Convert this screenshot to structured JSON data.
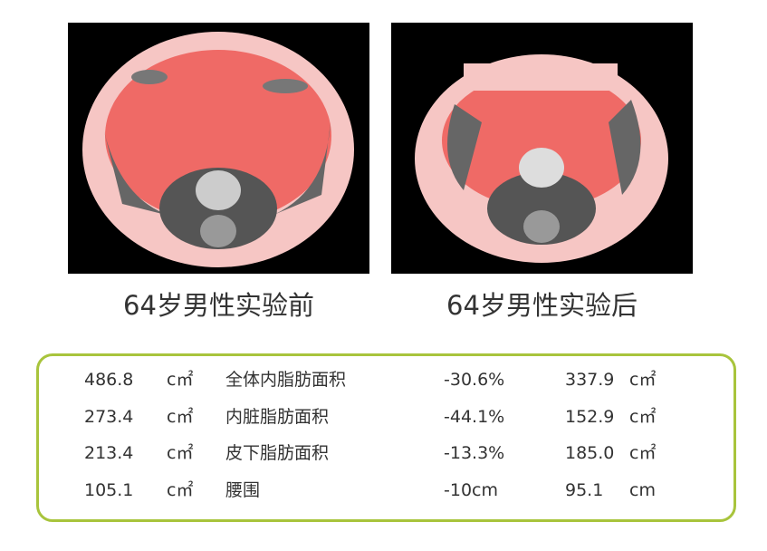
{
  "images": [
    {
      "caption": "64岁男性实验前"
    },
    {
      "caption": "64岁男性实验后"
    }
  ],
  "table": {
    "rows": [
      [
        "486.8",
        "c㎡",
        "全体内脂肪面积",
        "-30.6%",
        "337.9",
        "c㎡"
      ],
      [
        "273.4",
        "c㎡",
        "内脏脂肪面积",
        "-44.1%",
        "152.9",
        "c㎡"
      ],
      [
        "213.4",
        "c㎡",
        "皮下脂肪面积",
        "-13.3%",
        "185.0",
        "c㎡"
      ],
      [
        "105.1",
        "c㎡",
        "腰围",
        "-10cm",
        "95.1",
        "cm"
      ]
    ]
  }
}
